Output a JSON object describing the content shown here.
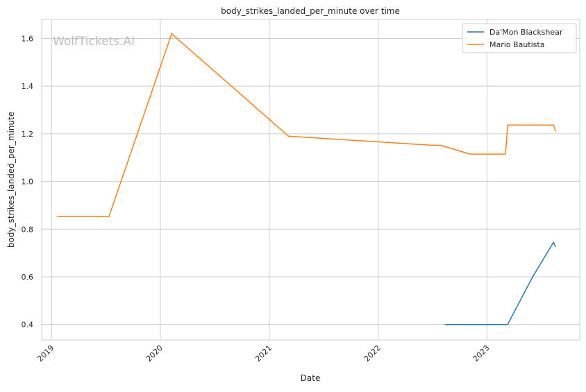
{
  "chart_data": {
    "type": "line",
    "title": "body_strikes_landed_per_minute over time",
    "xlabel": "Date",
    "ylabel": "body_strikes_landed_per_minute",
    "x_ticks": [
      "2019",
      "2020",
      "2021",
      "2022",
      "2023"
    ],
    "y_ticks": [
      "0.4",
      "0.6",
      "0.8",
      "1.0",
      "1.2",
      "1.4",
      "1.6"
    ],
    "xlim": [
      "2018-11-29",
      "2023-11-08"
    ],
    "ylim": [
      0.335,
      1.68
    ],
    "grid": true,
    "legend_position": "top-right",
    "watermark": "WolfTickets.AI",
    "series": [
      {
        "name": "Da'Mon Blackshear",
        "color": "#1f77b4",
        "points": [
          {
            "x": "2022-08-13",
            "y": 0.4
          },
          {
            "x": "2023-03-11",
            "y": 0.4
          },
          {
            "x": "2023-06-03",
            "y": 0.6
          },
          {
            "x": "2023-08-12",
            "y": 0.745
          },
          {
            "x": "2023-08-19",
            "y": 0.725
          }
        ]
      },
      {
        "name": "Mario Bautista",
        "color": "#ff7f0e",
        "points": [
          {
            "x": "2019-01-19",
            "y": 0.853
          },
          {
            "x": "2019-07-13",
            "y": 0.853
          },
          {
            "x": "2020-02-08",
            "y": 1.62
          },
          {
            "x": "2021-03-06",
            "y": 1.19
          },
          {
            "x": "2022-07-01",
            "y": 1.152
          },
          {
            "x": "2022-07-30",
            "y": 1.152
          },
          {
            "x": "2022-11-05",
            "y": 1.115
          },
          {
            "x": "2023-03-04",
            "y": 1.115
          },
          {
            "x": "2023-03-11",
            "y": 1.237
          },
          {
            "x": "2023-08-12",
            "y": 1.237
          },
          {
            "x": "2023-08-19",
            "y": 1.21
          }
        ]
      }
    ]
  }
}
